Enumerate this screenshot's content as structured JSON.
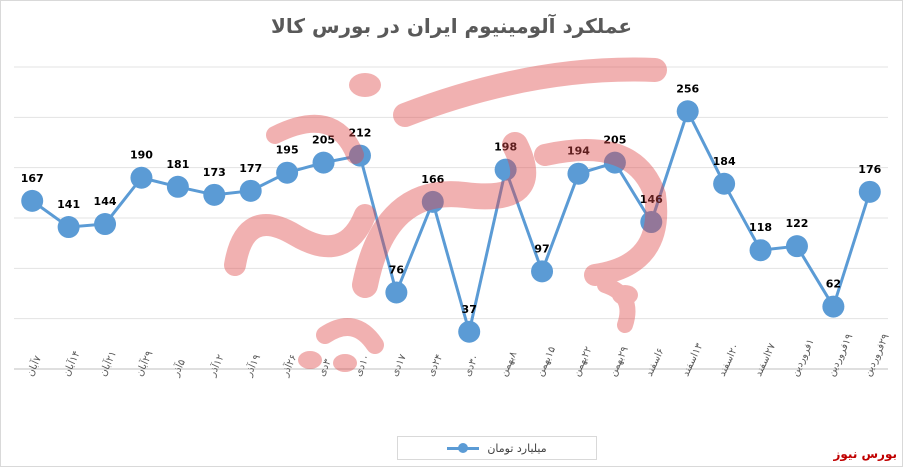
{
  "chart_data": {
    "type": "line",
    "title": "عملکرد آلومینیوم ایران در بورس کالا",
    "categories": [
      "۷آبان",
      "۱۴آبان",
      "۲۱آبان",
      "۲۹آبان",
      "۵آذر",
      "۱۲آذر",
      "۱۹آذر",
      "۲۶آذر",
      "۳دی",
      "۱۰دی",
      "۱۷دی",
      "۲۴دی",
      "۳۰دی",
      "۸بهمن",
      "۱۵بهمن",
      "۲۲بهمن",
      "۲۹بهمن",
      "۶اسفند",
      "۱۳اسفند",
      "۲۰اسفند",
      "۲۷اسفند",
      "۱فروردین",
      "۱۹فروردین",
      "۲۹فروردین"
    ],
    "series": [
      {
        "name": "میلیارد تومان",
        "values": [
          167,
          141,
          144,
          190,
          181,
          173,
          177,
          195,
          205,
          212,
          76,
          166,
          37,
          198,
          97,
          194,
          205,
          146,
          256,
          184,
          118,
          122,
          62,
          176
        ]
      }
    ],
    "ylim": [
      0,
      300
    ],
    "grid": true,
    "legend": "bottom",
    "color": "#5b9bd5"
  },
  "brand": "بورس نیوز"
}
